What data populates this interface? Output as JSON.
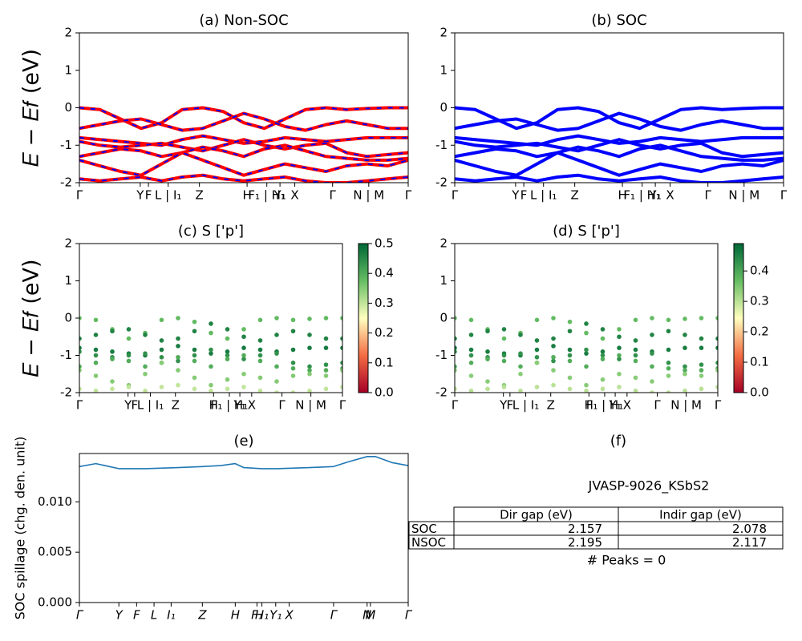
{
  "chart_data": [
    {
      "type": "line",
      "title": "(a) Non-SOC",
      "ylabel": "𝐸 − 𝐸𝑓 (eV)",
      "dash_color": "#0000ff",
      "x": [
        0,
        0.0625,
        0.125,
        0.1875,
        0.25,
        0.3125,
        0.375,
        0.4375,
        0.5,
        0.5625,
        0.625,
        0.6875,
        0.75,
        0.8125,
        0.875,
        0.9375,
        1
      ],
      "xlim": [
        0,
        1
      ],
      "ylim": [
        -2,
        2
      ],
      "yticks": [
        -2,
        -1,
        0,
        1,
        2
      ],
      "xticks": [
        {
          "value": 0,
          "label": "Γ"
        },
        {
          "value": 0.185,
          "label": "Y"
        },
        {
          "value": 0.21,
          "label": "F"
        },
        {
          "value": 0.27,
          "label": "L | I₁"
        },
        {
          "value": 0.365,
          "label": "Z"
        },
        {
          "value": 0.51,
          "label": "H"
        },
        {
          "value": 0.57,
          "label": "F₁ | H₁"
        },
        {
          "value": 0.61,
          "label": "Y₁"
        },
        {
          "value": 0.655,
          "label": "X"
        },
        {
          "value": 0.77,
          "label": "Γ"
        },
        {
          "value": 0.88,
          "label": "N | M"
        },
        {
          "value": 1,
          "label": "Γ"
        }
      ],
      "series": [
        {
          "color": "#ff0000",
          "values": [
            0,
            -0.05,
            -0.3,
            -0.55,
            -0.4,
            -0.05,
            0,
            -0.1,
            -0.4,
            -0.55,
            -0.3,
            -0.05,
            0,
            -0.05,
            -0.02,
            0,
            0
          ]
        },
        {
          "color": "#ff0000",
          "values": [
            -0.55,
            -0.45,
            -0.35,
            -0.3,
            -0.45,
            -0.6,
            -0.55,
            -0.35,
            -0.15,
            -0.3,
            -0.5,
            -0.6,
            -0.45,
            -0.35,
            -0.45,
            -0.55,
            -0.55
          ]
        },
        {
          "color": "#ff0000",
          "values": [
            -0.8,
            -0.85,
            -0.9,
            -0.95,
            -1,
            -0.85,
            -0.75,
            -0.85,
            -0.95,
            -0.9,
            -0.8,
            -0.85,
            -0.9,
            -0.85,
            -0.8,
            -0.8,
            -0.8
          ]
        },
        {
          "color": "#ff0000",
          "values": [
            -0.9,
            -1,
            -1.05,
            -1,
            -0.95,
            -1.05,
            -1.15,
            -1,
            -0.85,
            -1,
            -1.1,
            -1,
            -0.95,
            -1.2,
            -1.3,
            -1.25,
            -1.2
          ]
        },
        {
          "color": "#ff0000",
          "values": [
            -1.3,
            -1.2,
            -1.1,
            -1.15,
            -1.3,
            -1.2,
            -1.05,
            -1.15,
            -1.3,
            -1.1,
            -1,
            -1.15,
            -1.3,
            -1.35,
            -1.4,
            -1.4,
            -1.35
          ]
        },
        {
          "color": "#ff0000",
          "values": [
            -1.4,
            -1.55,
            -1.7,
            -1.8,
            -1.5,
            -1.2,
            -1.4,
            -1.6,
            -1.8,
            -1.65,
            -1.5,
            -1.6,
            -1.7,
            -1.55,
            -1.5,
            -1.55,
            -1.4
          ]
        },
        {
          "color": "#ff0000",
          "values": [
            -1.9,
            -1.95,
            -1.9,
            -1.85,
            -1.95,
            -1.85,
            -1.8,
            -1.9,
            -1.95,
            -1.9,
            -1.85,
            -1.95,
            -2,
            -2,
            -1.95,
            -1.9,
            -1.85
          ]
        }
      ]
    },
    {
      "type": "line",
      "title": "(b) SOC",
      "x": [
        0,
        0.0625,
        0.125,
        0.1875,
        0.25,
        0.3125,
        0.375,
        0.4375,
        0.5,
        0.5625,
        0.625,
        0.6875,
        0.75,
        0.8125,
        0.875,
        0.9375,
        1
      ],
      "xlim": [
        0,
        1
      ],
      "ylim": [
        -2,
        2
      ],
      "yticks": [
        -2,
        -1,
        0,
        1,
        2
      ],
      "xticks": [
        {
          "value": 0,
          "label": "Γ"
        },
        {
          "value": 0.185,
          "label": "Y"
        },
        {
          "value": 0.21,
          "label": "F"
        },
        {
          "value": 0.27,
          "label": "L | I₁"
        },
        {
          "value": 0.365,
          "label": "Z"
        },
        {
          "value": 0.51,
          "label": "H"
        },
        {
          "value": 0.57,
          "label": "F₁ | H₁"
        },
        {
          "value": 0.61,
          "label": "Y₁"
        },
        {
          "value": 0.655,
          "label": "X"
        },
        {
          "value": 0.77,
          "label": "Γ"
        },
        {
          "value": 0.88,
          "label": "N | M"
        },
        {
          "value": 1,
          "label": "Γ"
        }
      ],
      "series": [
        {
          "color": "#0000ff",
          "values": [
            0,
            -0.05,
            -0.3,
            -0.55,
            -0.4,
            -0.05,
            0,
            -0.1,
            -0.4,
            -0.55,
            -0.3,
            -0.05,
            0,
            -0.05,
            -0.02,
            0,
            0
          ]
        },
        {
          "color": "#0000ff",
          "values": [
            -0.55,
            -0.45,
            -0.35,
            -0.3,
            -0.45,
            -0.6,
            -0.55,
            -0.35,
            -0.15,
            -0.3,
            -0.5,
            -0.6,
            -0.45,
            -0.35,
            -0.45,
            -0.55,
            -0.55
          ]
        },
        {
          "color": "#0000ff",
          "values": [
            -0.8,
            -0.85,
            -0.9,
            -0.95,
            -1,
            -0.85,
            -0.75,
            -0.85,
            -0.95,
            -0.9,
            -0.8,
            -0.85,
            -0.9,
            -0.85,
            -0.8,
            -0.8,
            -0.8
          ]
        },
        {
          "color": "#0000ff",
          "values": [
            -0.9,
            -1,
            -1.05,
            -1,
            -0.95,
            -1.05,
            -1.15,
            -1,
            -0.85,
            -1,
            -1.1,
            -1,
            -0.95,
            -1.2,
            -1.3,
            -1.25,
            -1.2
          ]
        },
        {
          "color": "#0000ff",
          "values": [
            -1.3,
            -1.2,
            -1.1,
            -1.15,
            -1.3,
            -1.2,
            -1.05,
            -1.15,
            -1.3,
            -1.1,
            -1,
            -1.15,
            -1.3,
            -1.35,
            -1.4,
            -1.4,
            -1.35
          ]
        },
        {
          "color": "#0000ff",
          "values": [
            -1.4,
            -1.55,
            -1.7,
            -1.8,
            -1.5,
            -1.2,
            -1.4,
            -1.6,
            -1.8,
            -1.65,
            -1.5,
            -1.6,
            -1.7,
            -1.55,
            -1.5,
            -1.55,
            -1.4
          ]
        },
        {
          "color": "#0000ff",
          "values": [
            -1.9,
            -1.95,
            -1.9,
            -1.85,
            -1.95,
            -1.85,
            -1.8,
            -1.9,
            -1.95,
            -1.9,
            -1.85,
            -1.95,
            -2,
            -2,
            -1.95,
            -1.9,
            -1.85
          ]
        }
      ]
    },
    {
      "type": "scatter",
      "title": "(c)  S ['p']",
      "ylabel": "𝐸 − 𝐸𝑓 (eV)",
      "colormap": "RdYlGn",
      "clim": [
        0,
        0.5
      ],
      "cticks": [
        {
          "value": 0,
          "label": "0.0"
        },
        0.1,
        0.2,
        0.3,
        0.4,
        0.5
      ],
      "x": [
        0,
        0.0625,
        0.125,
        0.1875,
        0.25,
        0.3125,
        0.375,
        0.4375,
        0.5,
        0.5625,
        0.625,
        0.6875,
        0.75,
        0.8125,
        0.875,
        0.9375,
        1
      ],
      "xlim": [
        0,
        1
      ],
      "ylim": [
        -2,
        2
      ],
      "yticks": [
        -2,
        -1,
        0,
        1,
        2
      ],
      "xticks": [
        {
          "value": 0,
          "label": "Γ"
        },
        {
          "value": 0.185,
          "label": "Y"
        },
        {
          "value": 0.21,
          "label": "F"
        },
        {
          "value": 0.27,
          "label": "L | I₁"
        },
        {
          "value": 0.365,
          "label": "Z"
        },
        {
          "value": 0.51,
          "label": "H"
        },
        {
          "value": 0.57,
          "label": "F₁ | H₁"
        },
        {
          "value": 0.61,
          "label": "Y₁"
        },
        {
          "value": 0.655,
          "label": "X"
        },
        {
          "value": 0.77,
          "label": "Γ"
        },
        {
          "value": 0.88,
          "label": "N | M"
        },
        {
          "value": 1,
          "label": "Γ"
        }
      ],
      "series": [
        {
          "weight": 0.38,
          "values": [
            0,
            -0.05,
            -0.3,
            -0.55,
            -0.4,
            -0.05,
            0,
            -0.1,
            -0.4,
            -0.55,
            -0.3,
            -0.05,
            0,
            -0.05,
            -0.02,
            0,
            0
          ]
        },
        {
          "weight": 0.46,
          "values": [
            -0.55,
            -0.45,
            -0.35,
            -0.3,
            -0.45,
            -0.6,
            -0.55,
            -0.35,
            -0.15,
            -0.3,
            -0.5,
            -0.6,
            -0.45,
            -0.35,
            -0.45,
            -0.55,
            -0.55
          ]
        },
        {
          "weight": 0.47,
          "values": [
            -0.8,
            -0.85,
            -0.9,
            -0.95,
            -1,
            -0.85,
            -0.75,
            -0.85,
            -0.95,
            -0.9,
            -0.8,
            -0.85,
            -0.9,
            -0.85,
            -0.8,
            -0.8,
            -0.8
          ]
        },
        {
          "weight": 0.44,
          "values": [
            -0.9,
            -1,
            -1.05,
            -1,
            -0.95,
            -1.05,
            -1.15,
            -1,
            -0.85,
            -1,
            -1.1,
            -1,
            -0.95,
            -1.2,
            -1.3,
            -1.25,
            -1.2
          ]
        },
        {
          "weight": 0.4,
          "values": [
            -1.3,
            -1.2,
            -1.1,
            -1.15,
            -1.3,
            -1.2,
            -1.05,
            -1.15,
            -1.3,
            -1.1,
            -1,
            -1.15,
            -1.3,
            -1.35,
            -1.4,
            -1.4,
            -1.35
          ]
        },
        {
          "weight": 0.35,
          "values": [
            -1.4,
            -1.55,
            -1.7,
            -1.8,
            -1.5,
            -1.2,
            -1.4,
            -1.6,
            -1.8,
            -1.65,
            -1.5,
            -1.6,
            -1.7,
            -1.55,
            -1.5,
            -1.55,
            -1.4
          ]
        },
        {
          "weight": 0.3,
          "values": [
            -1.9,
            -1.95,
            -1.9,
            -1.85,
            -1.95,
            -1.85,
            -1.8,
            -1.9,
            -1.95,
            -1.9,
            -1.85,
            -1.95,
            -2,
            -2,
            -1.95,
            -1.9,
            -1.85
          ]
        }
      ]
    },
    {
      "type": "scatter",
      "title": "(d) S ['p']",
      "colormap": "RdYlGn",
      "clim": [
        0,
        0.49
      ],
      "cticks": [
        {
          "value": 0,
          "label": "0.0"
        },
        0.1,
        0.2,
        0.3,
        0.4
      ],
      "x": [
        0,
        0.0625,
        0.125,
        0.1875,
        0.25,
        0.3125,
        0.375,
        0.4375,
        0.5,
        0.5625,
        0.625,
        0.6875,
        0.75,
        0.8125,
        0.875,
        0.9375,
        1
      ],
      "xlim": [
        0,
        1
      ],
      "ylim": [
        -2,
        2
      ],
      "yticks": [
        -2,
        -1,
        0,
        1,
        2
      ],
      "xticks": [
        {
          "value": 0,
          "label": "Γ"
        },
        {
          "value": 0.185,
          "label": "Y"
        },
        {
          "value": 0.21,
          "label": "F"
        },
        {
          "value": 0.27,
          "label": "L | I₁"
        },
        {
          "value": 0.365,
          "label": "Z"
        },
        {
          "value": 0.51,
          "label": "H"
        },
        {
          "value": 0.57,
          "label": "F₁ | H₁"
        },
        {
          "value": 0.61,
          "label": "Y₁"
        },
        {
          "value": 0.655,
          "label": "X"
        },
        {
          "value": 0.77,
          "label": "Γ"
        },
        {
          "value": 0.88,
          "label": "N | M"
        },
        {
          "value": 1,
          "label": "Γ"
        }
      ],
      "series": [
        {
          "weight": 0.37,
          "values": [
            0,
            -0.05,
            -0.3,
            -0.55,
            -0.4,
            -0.05,
            0,
            -0.1,
            -0.4,
            -0.55,
            -0.3,
            -0.05,
            0,
            -0.05,
            -0.02,
            0,
            0
          ]
        },
        {
          "weight": 0.45,
          "values": [
            -0.55,
            -0.45,
            -0.35,
            -0.3,
            -0.45,
            -0.6,
            -0.55,
            -0.35,
            -0.15,
            -0.3,
            -0.5,
            -0.6,
            -0.45,
            -0.35,
            -0.45,
            -0.55,
            -0.55
          ]
        },
        {
          "weight": 0.46,
          "values": [
            -0.8,
            -0.85,
            -0.9,
            -0.95,
            -1,
            -0.85,
            -0.75,
            -0.85,
            -0.95,
            -0.9,
            -0.8,
            -0.85,
            -0.9,
            -0.85,
            -0.8,
            -0.8,
            -0.8
          ]
        },
        {
          "weight": 0.43,
          "values": [
            -0.9,
            -1,
            -1.05,
            -1,
            -0.95,
            -1.05,
            -1.15,
            -1,
            -0.85,
            -1,
            -1.1,
            -1,
            -0.95,
            -1.2,
            -1.3,
            -1.25,
            -1.2
          ]
        },
        {
          "weight": 0.39,
          "values": [
            -1.3,
            -1.2,
            -1.1,
            -1.15,
            -1.3,
            -1.2,
            -1.05,
            -1.15,
            -1.3,
            -1.1,
            -1,
            -1.15,
            -1.3,
            -1.35,
            -1.4,
            -1.4,
            -1.35
          ]
        },
        {
          "weight": 0.34,
          "values": [
            -1.4,
            -1.55,
            -1.7,
            -1.8,
            -1.5,
            -1.2,
            -1.4,
            -1.6,
            -1.8,
            -1.65,
            -1.5,
            -1.6,
            -1.7,
            -1.55,
            -1.5,
            -1.55,
            -1.4
          ]
        },
        {
          "weight": 0.3,
          "values": [
            -1.9,
            -1.95,
            -1.9,
            -1.85,
            -1.95,
            -1.85,
            -1.8,
            -1.9,
            -1.95,
            -1.9,
            -1.85,
            -1.95,
            -2,
            -2,
            -1.95,
            -1.9,
            -1.85
          ]
        }
      ]
    },
    {
      "type": "line",
      "title": "(e)",
      "ylabel": "SOC spillage (chg. den. unit)",
      "italic_xticks": true,
      "x": [
        0,
        0.05,
        0.12,
        0.2,
        0.3,
        0.374,
        0.43,
        0.474,
        0.5,
        0.555,
        0.6,
        0.7,
        0.773,
        0.82,
        0.875,
        0.9,
        0.95,
        1
      ],
      "xlim": [
        0,
        1
      ],
      "ylim": [
        0,
        0.0148
      ],
      "yticks": [
        {
          "value": 0,
          "label": "0.000"
        },
        {
          "value": 0.005,
          "label": "0.005"
        },
        {
          "value": 0.01,
          "label": "0.010"
        }
      ],
      "xticks": [
        {
          "value": 0,
          "label": "Γ"
        },
        {
          "value": 0.12,
          "label": "Y"
        },
        {
          "value": 0.174,
          "label": "F"
        },
        {
          "value": 0.227,
          "label": "L"
        },
        {
          "value": 0.279,
          "label": "I₁"
        },
        {
          "value": 0.374,
          "label": "Z"
        },
        {
          "value": 0.474,
          "label": "H"
        },
        {
          "value": 0.54,
          "label": "F₁"
        },
        {
          "value": 0.555,
          "label": "H₁"
        },
        {
          "value": 0.597,
          "label": "Y₁"
        },
        {
          "value": 0.638,
          "label": "X"
        },
        {
          "value": 0.773,
          "label": "Γ"
        },
        {
          "value": 0.875,
          "label": "N"
        },
        {
          "value": 0.885,
          "label": "M"
        },
        {
          "value": 1,
          "label": "Γ"
        }
      ],
      "series": [
        {
          "color": "#1f77b4",
          "values": [
            0.0135,
            0.0138,
            0.0133,
            0.0133,
            0.0134,
            0.0135,
            0.0136,
            0.0138,
            0.0134,
            0.0133,
            0.0133,
            0.0134,
            0.0135,
            0.014,
            0.0145,
            0.0145,
            0.0139,
            0.0136
          ]
        }
      ]
    },
    {
      "type": "table",
      "title": "(f)",
      "text": "JVASP-9026_KSbS2",
      "header": [
        "Dir gap (eV)",
        "Indir gap (eV)"
      ],
      "rows": [
        [
          "SOC",
          "2.157",
          "2.078"
        ],
        [
          "NSOC",
          "2.195",
          "2.117"
        ]
      ],
      "footer": "# Peaks = 0"
    }
  ]
}
